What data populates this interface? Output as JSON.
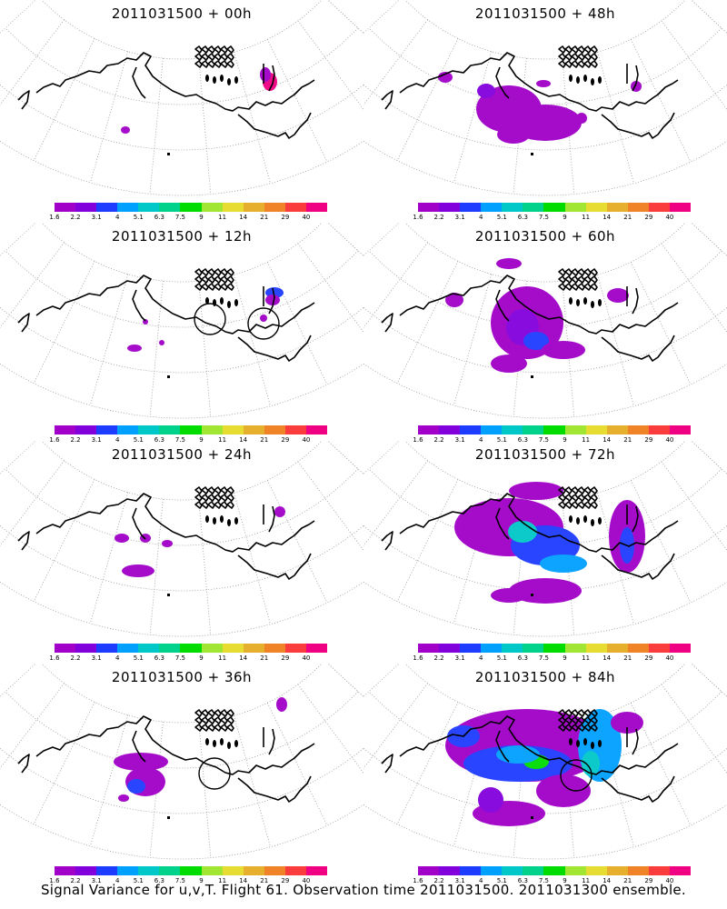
{
  "colorbar": {
    "colors": [
      "#a000c8",
      "#8200dc",
      "#1e3cff",
      "#00a0ff",
      "#00c8c8",
      "#00d28c",
      "#00dc00",
      "#a0e632",
      "#e6dc32",
      "#e6af2d",
      "#f08228",
      "#fa3c3c",
      "#f00082"
    ],
    "ticks": [
      "1.6",
      "2.2",
      "3.1",
      "4",
      "5.1",
      "6.3",
      "7.5",
      "9",
      "11",
      "14",
      "21",
      "29",
      "40"
    ]
  },
  "footer": "Signal Variance for u,v,T. Flight 61. Observation time 2011031500. 2011031300 ensemble.",
  "chart_data": [
    {
      "type": "heatmap",
      "title": "2011031500 + 00h",
      "lead_hours": 0,
      "level": "low",
      "circles": 0
    },
    {
      "type": "heatmap",
      "title": "2011031500 + 48h",
      "lead_hours": 48,
      "level": "moderate",
      "circles": 0
    },
    {
      "type": "heatmap",
      "title": "2011031500 + 12h",
      "lead_hours": 12,
      "level": "low",
      "circles": 2
    },
    {
      "type": "heatmap",
      "title": "2011031500 + 60h",
      "lead_hours": 60,
      "level": "moderate",
      "circles": 0
    },
    {
      "type": "heatmap",
      "title": "2011031500 + 24h",
      "lead_hours": 24,
      "level": "low",
      "circles": 0
    },
    {
      "type": "heatmap",
      "title": "2011031500 + 72h",
      "lead_hours": 72,
      "level": "high",
      "circles": 0
    },
    {
      "type": "heatmap",
      "title": "2011031500 + 36h",
      "lead_hours": 36,
      "level": "low",
      "circles": 1
    },
    {
      "type": "heatmap",
      "title": "2011031500 + 84h",
      "lead_hours": 84,
      "level": "high",
      "circles": 1
    }
  ]
}
